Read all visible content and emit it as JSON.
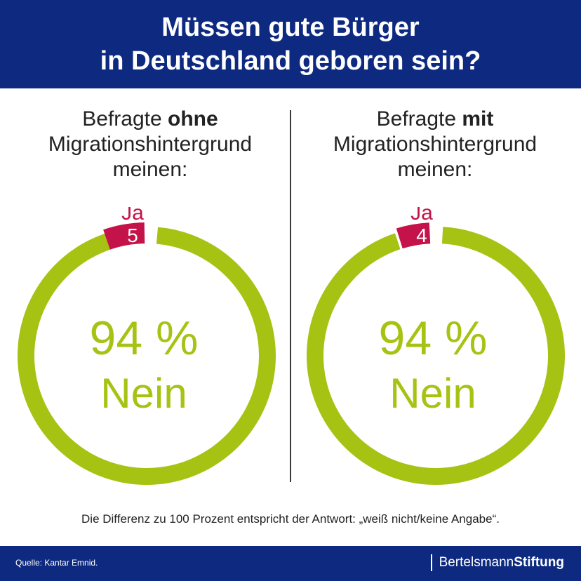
{
  "header": {
    "title_line1": "Müssen gute Bürger",
    "title_line2": "in Deutschland geboren sein?"
  },
  "colors": {
    "header_bg": "#0e2a80",
    "nein": "#a6c314",
    "ja": "#c4124a",
    "text": "#222222"
  },
  "panels": [
    {
      "label_pre": "Befragte ",
      "label_bold": "ohne",
      "label_line2": "Migrationshintergrund",
      "label_line3": "meinen:"
    },
    {
      "label_pre": "Befragte ",
      "label_bold": "mit",
      "label_line2": "Migrationshintergrund",
      "label_line3": "meinen:"
    }
  ],
  "chart_data": [
    {
      "type": "pie",
      "categories": [
        "Ja",
        "Nein"
      ],
      "values": [
        5,
        94
      ],
      "ja_label": "Ja",
      "ja_value": "5",
      "center_value": "94 %",
      "center_label": "Nein"
    },
    {
      "type": "pie",
      "categories": [
        "Ja",
        "Nein"
      ],
      "values": [
        4,
        94
      ],
      "ja_label": "Ja",
      "ja_value": "4",
      "center_value": "94 %",
      "center_label": "Nein"
    }
  ],
  "footnote": "Die Differenz zu 100 Prozent entspricht der Antwort: „weiß nicht/keine Angabe“.",
  "footer": {
    "source": "Quelle: Kantar Emnid.",
    "brand_regular": "Bertelsmann",
    "brand_bold": "Stiftung"
  }
}
